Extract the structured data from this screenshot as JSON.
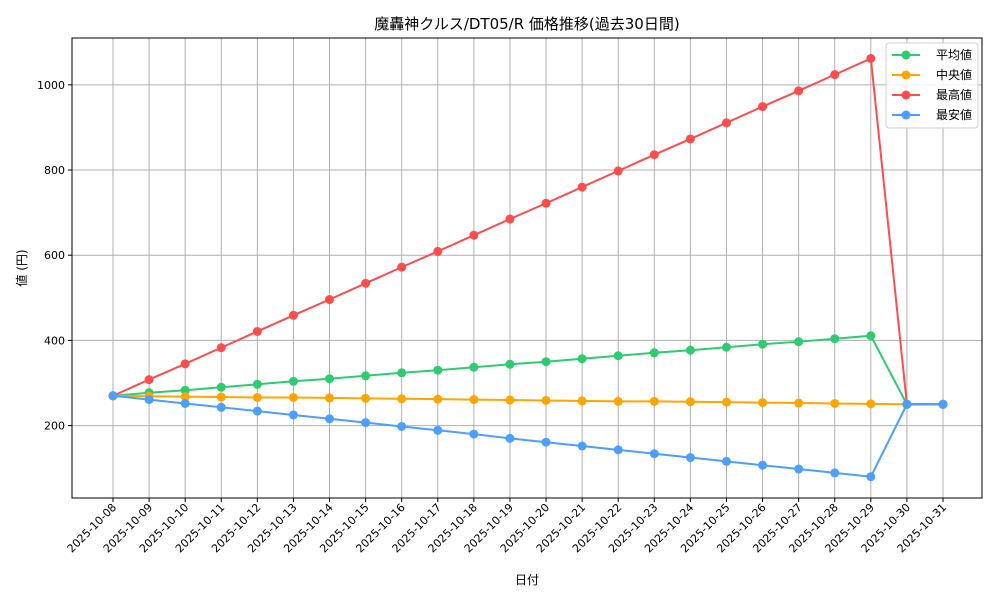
{
  "chart_data": {
    "type": "line",
    "title": "魔轟神クルス/DT05/R 価格推移(過去30日間)",
    "xlabel": "日付",
    "ylabel": "値 (円)",
    "ylim": [
      30,
      1110
    ],
    "yticks": [
      200,
      400,
      600,
      800,
      1000
    ],
    "grid": true,
    "legend_position": "top-right",
    "categories": [
      "2025-10-08",
      "2025-10-09",
      "2025-10-10",
      "2025-10-11",
      "2025-10-12",
      "2025-10-13",
      "2025-10-14",
      "2025-10-15",
      "2025-10-16",
      "2025-10-17",
      "2025-10-18",
      "2025-10-19",
      "2025-10-20",
      "2025-10-21",
      "2025-10-22",
      "2025-10-23",
      "2025-10-24",
      "2025-10-25",
      "2025-10-26",
      "2025-10-27",
      "2025-10-28",
      "2025-10-29",
      "2025-10-30",
      "2025-10-31"
    ],
    "series": [
      {
        "name": "平均値",
        "color": "#2ecc71",
        "values": [
          270,
          277,
          283,
          290,
          297,
          304,
          310,
          317,
          324,
          330,
          337,
          344,
          350,
          357,
          364,
          371,
          377,
          384,
          391,
          397,
          404,
          411,
          250,
          250
        ]
      },
      {
        "name": "中央値",
        "color": "#ffa500",
        "values": [
          270,
          269,
          268,
          267,
          266,
          266,
          265,
          264,
          263,
          262,
          261,
          260,
          259,
          258,
          257,
          257,
          256,
          255,
          254,
          253,
          252,
          251,
          250,
          250
        ]
      },
      {
        "name": "最高値",
        "color": "#ff4d4d",
        "values": [
          270,
          308,
          345,
          383,
          421,
          459,
          496,
          534,
          572,
          609,
          647,
          685,
          722,
          760,
          798,
          836,
          873,
          911,
          949,
          986,
          1024,
          1062,
          250,
          250
        ]
      },
      {
        "name": "最安値",
        "color": "#4d9fff",
        "values": [
          270,
          261,
          252,
          243,
          234,
          225,
          216,
          207,
          198,
          189,
          180,
          170,
          161,
          152,
          143,
          134,
          125,
          116,
          107,
          98,
          89,
          80,
          250,
          250
        ]
      }
    ]
  }
}
